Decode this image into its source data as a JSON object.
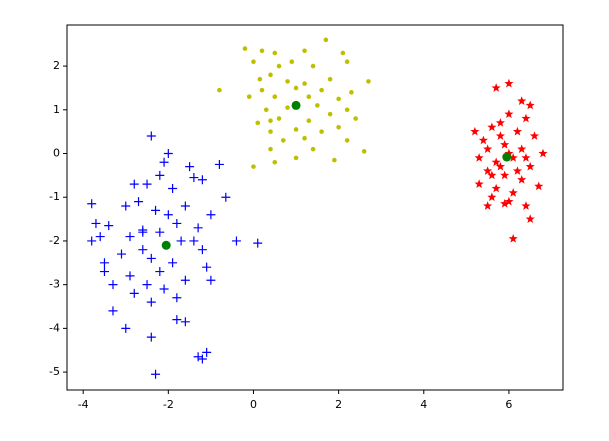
{
  "chart_data": {
    "type": "scatter",
    "xlim": [
      -4.38,
      7.27
    ],
    "ylim": [
      -5.41,
      2.94
    ],
    "xticks": [
      -4,
      -2,
      0,
      2,
      4,
      6
    ],
    "yticks": [
      -5,
      -4,
      -3,
      -2,
      -1,
      0,
      1,
      2
    ],
    "series": [
      {
        "color": "#0000ff",
        "marker": "+",
        "x": [
          -2.4,
          -2.0,
          -2.1,
          -1.5,
          -0.8,
          -2.2,
          -1.4,
          -2.8,
          -2.5,
          -1.9,
          -1.2,
          -0.65,
          -3.8,
          -3.0,
          -2.7,
          -1.6,
          -2.3,
          -1.0,
          -3.7,
          -3.4,
          -2.6,
          -1.8,
          -1.3,
          -3.6,
          -2.9,
          -2.2,
          -1.7,
          -0.4,
          0.1,
          -3.8,
          -2.6,
          -1.2,
          -3.1,
          -2.4,
          -1.9,
          -3.5,
          -2.2,
          -1.1,
          -3.5,
          -2.9,
          -1.6,
          -3.3,
          -2.5,
          -2.1,
          -1.0,
          -2.8,
          -1.8,
          -2.4,
          -3.3,
          -1.8,
          -1.6,
          -3.0,
          -2.4,
          -1.3,
          -1.1,
          -1.2,
          -2.3,
          -2.6,
          -2.0,
          -1.4
        ],
        "values": [
          0.4,
          0.0,
          -0.2,
          -0.3,
          -0.25,
          -0.5,
          -0.55,
          -0.7,
          -0.7,
          -0.8,
          -0.6,
          -1.0,
          -1.15,
          -1.2,
          -1.1,
          -1.2,
          -1.3,
          -1.4,
          -1.6,
          -1.65,
          -1.75,
          -1.6,
          -1.7,
          -1.9,
          -1.9,
          -1.8,
          -2.0,
          -2.0,
          -2.05,
          -2.0,
          -2.2,
          -2.2,
          -2.3,
          -2.4,
          -2.5,
          -2.5,
          -2.7,
          -2.6,
          -2.7,
          -2.8,
          -2.9,
          -3.0,
          -3.0,
          -3.1,
          -2.9,
          -3.2,
          -3.3,
          -3.4,
          -3.6,
          -3.8,
          -3.85,
          -4.0,
          -4.2,
          -4.65,
          -4.55,
          -4.7,
          -5.05,
          -1.8,
          -1.4,
          -2.0
        ]
      },
      {
        "color": "#bfbf00",
        "marker": "o",
        "x": [
          -0.2,
          0.2,
          0.5,
          1.7,
          1.2,
          2.1,
          0.0,
          0.6,
          0.9,
          1.4,
          2.2,
          -0.8,
          0.15,
          0.4,
          0.8,
          1.2,
          1.8,
          2.7,
          0.2,
          1.0,
          1.6,
          2.3,
          -0.1,
          0.5,
          1.3,
          2.0,
          0.3,
          0.8,
          1.5,
          2.2,
          0.1,
          0.6,
          1.3,
          1.8,
          2.4,
          0.4,
          1.0,
          1.6,
          2.0,
          0.7,
          1.2,
          2.2,
          0.4,
          1.4,
          2.6,
          0.0,
          0.5,
          1.0,
          1.9,
          0.4
        ],
        "values": [
          2.4,
          2.35,
          2.3,
          2.6,
          2.35,
          2.3,
          2.1,
          2.0,
          2.1,
          2.0,
          2.1,
          1.45,
          1.7,
          1.8,
          1.65,
          1.6,
          1.7,
          1.65,
          1.45,
          1.5,
          1.45,
          1.4,
          1.3,
          1.3,
          1.3,
          1.25,
          1.0,
          1.05,
          1.1,
          1.0,
          0.7,
          0.8,
          0.75,
          0.9,
          0.8,
          0.5,
          0.55,
          0.5,
          0.6,
          0.3,
          0.35,
          0.3,
          0.1,
          0.1,
          0.05,
          -0.3,
          -0.2,
          -0.1,
          -0.15,
          0.75
        ]
      },
      {
        "color": "#ff0000",
        "marker": "*",
        "x": [
          5.7,
          6.0,
          6.3,
          6.5,
          5.2,
          5.6,
          6.0,
          6.4,
          5.4,
          5.8,
          6.2,
          6.6,
          5.5,
          5.9,
          6.3,
          6.8,
          5.3,
          5.7,
          6.1,
          6.5,
          5.5,
          5.9,
          6.3,
          5.3,
          5.7,
          6.1,
          6.7,
          5.6,
          6.0,
          6.4,
          5.5,
          5.9,
          6.5,
          6.1,
          5.8,
          6.2,
          6.0,
          5.6,
          6.4,
          5.8
        ],
        "values": [
          1.5,
          1.6,
          1.2,
          1.1,
          0.5,
          0.6,
          0.9,
          0.8,
          0.3,
          0.4,
          0.5,
          0.4,
          0.1,
          0.2,
          0.1,
          0.0,
          -0.1,
          -0.2,
          -0.1,
          -0.3,
          -0.4,
          -0.5,
          -0.6,
          -0.7,
          -0.8,
          -0.9,
          -0.75,
          -1.0,
          -1.1,
          -1.2,
          -1.2,
          -1.15,
          -1.5,
          -1.95,
          -0.3,
          -0.4,
          0.0,
          -0.5,
          -0.1,
          0.7
        ]
      },
      {
        "color": "#008000",
        "marker": "O",
        "x": [
          1.0,
          -2.05,
          5.95
        ],
        "values": [
          1.1,
          -2.1,
          -0.08
        ]
      }
    ]
  }
}
